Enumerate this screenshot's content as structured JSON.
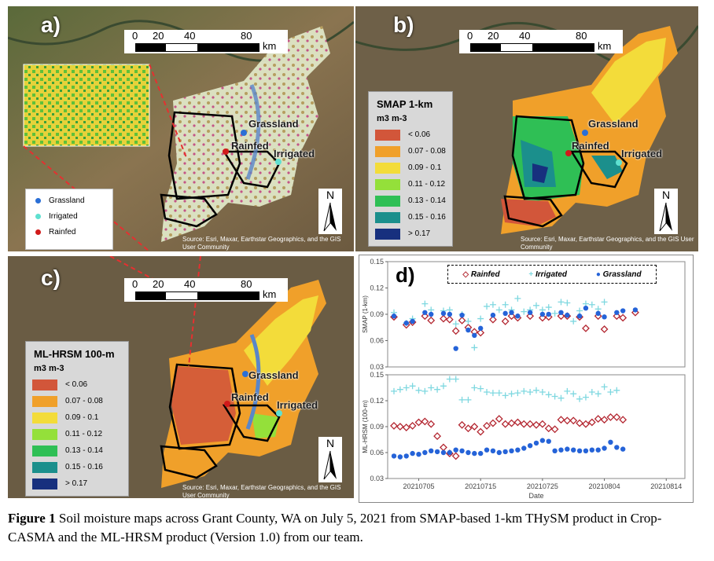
{
  "panels": {
    "a": {
      "tag": "a)"
    },
    "b": {
      "tag": "b)"
    },
    "c": {
      "tag": "c)"
    },
    "d": {
      "tag": "d)"
    }
  },
  "scalebar": {
    "ticks": [
      "0",
      "20",
      "40",
      "80"
    ],
    "unit": "km"
  },
  "north_label": "N",
  "source_text": "Source: Esri, Maxar, Earthstar Geographics, and the GIS User Community",
  "sites": {
    "grassland": "Grassland",
    "rainfed": "Rainfed",
    "irrigated": "Irrigated"
  },
  "point_legend": [
    {
      "label": "Grassland",
      "color": "#2a6fd6"
    },
    {
      "label": "Irrigated",
      "color": "#5fe0d0"
    },
    {
      "label": "Rainfed",
      "color": "#d11a1a"
    }
  ],
  "smap_legend": {
    "title": "SMAP 1-km",
    "unit": "m3 m-3",
    "classes": [
      {
        "label": "< 0.06",
        "color": "#d2563a"
      },
      {
        "label": "0.07 - 0.08",
        "color": "#f0a02a"
      },
      {
        "label": "0.09 - 0.1",
        "color": "#f3dc3a"
      },
      {
        "label": "0.11 - 0.12",
        "color": "#94e03a"
      },
      {
        "label": "0.13 - 0.14",
        "color": "#2fbf55"
      },
      {
        "label": "0.15 - 0.16",
        "color": "#1b8f8c"
      },
      {
        "label": "> 0.17",
        "color": "#17307e"
      }
    ]
  },
  "mlhrsm_legend": {
    "title": "ML-HRSM 100-m",
    "unit": "m3 m-3",
    "classes": [
      {
        "label": "< 0.06",
        "color": "#d2563a"
      },
      {
        "label": "0.07 - 0.08",
        "color": "#f0a02a"
      },
      {
        "label": "0.09 - 0.1",
        "color": "#f3dc3a"
      },
      {
        "label": "0.11 - 0.12",
        "color": "#94e03a"
      },
      {
        "label": "0.13 - 0.14",
        "color": "#2fbf55"
      },
      {
        "label": "0.15 - 0.16",
        "color": "#1b8f8c"
      },
      {
        "label": "> 0.17",
        "color": "#17307e"
      }
    ]
  },
  "chart_data": {
    "type": "scatter",
    "xlabel": "Date",
    "x_tick_labels": [
      "20210705",
      "20210715",
      "20210725",
      "20210804",
      "20210814"
    ],
    "x_dates": [
      "07-01",
      "07-02",
      "07-03",
      "07-04",
      "07-05",
      "07-06",
      "07-07",
      "07-08",
      "07-09",
      "07-10",
      "07-11",
      "07-12",
      "07-13",
      "07-14",
      "07-15",
      "07-16",
      "07-17",
      "07-18",
      "07-19",
      "07-20",
      "07-21",
      "07-22",
      "07-23",
      "07-24",
      "07-25",
      "07-26",
      "07-27",
      "07-28",
      "07-29",
      "07-30",
      "07-31",
      "08-01",
      "08-02",
      "08-03",
      "08-04",
      "08-05",
      "08-06",
      "08-07",
      "08-08",
      "08-09",
      "08-10",
      "08-11",
      "08-12",
      "08-13",
      "08-14",
      "08-15",
      "08-16"
    ],
    "legend": [
      {
        "name": "Rainfed",
        "marker": "diamond",
        "color": "#b32630"
      },
      {
        "name": "Irrigated",
        "marker": "plus",
        "color": "#7fd8e0"
      },
      {
        "name": "Grassland",
        "marker": "circle",
        "color": "#2563d8"
      }
    ],
    "subplots": [
      {
        "ylabel": "SMAP (1-km)",
        "ylim": [
          0.03,
          0.15
        ],
        "yticks": [
          "0.15",
          "0.12",
          "0.09",
          "0.06",
          "0.03"
        ],
        "series": [
          {
            "name": "Rainfed",
            "points": [
              [
                0,
                0.087
              ],
              [
                2,
                0.078
              ],
              [
                3,
                0.081
              ],
              [
                5,
                0.088
              ],
              [
                6,
                0.083
              ],
              [
                8,
                0.085
              ],
              [
                9,
                0.084
              ],
              [
                10,
                0.071
              ],
              [
                11,
                0.083
              ],
              [
                12,
                0.075
              ],
              [
                13,
                0.07
              ],
              [
                14,
                0.069
              ],
              [
                16,
                0.084
              ],
              [
                18,
                0.082
              ],
              [
                19,
                0.088
              ],
              [
                20,
                0.086
              ],
              [
                22,
                0.088
              ],
              [
                24,
                0.086
              ],
              [
                25,
                0.087
              ],
              [
                27,
                0.088
              ],
              [
                28,
                0.088
              ],
              [
                30,
                0.087
              ],
              [
                31,
                0.074
              ],
              [
                33,
                0.088
              ],
              [
                34,
                0.073
              ],
              [
                36,
                0.088
              ],
              [
                37,
                0.086
              ],
              [
                39,
                0.092
              ]
            ]
          },
          {
            "name": "Irrigated",
            "points": [
              [
                0,
                0.092
              ],
              [
                2,
                0.08
              ],
              [
                3,
                0.085
              ],
              [
                5,
                0.102
              ],
              [
                6,
                0.095
              ],
              [
                8,
                0.094
              ],
              [
                9,
                0.095
              ],
              [
                10,
                0.079
              ],
              [
                11,
                0.09
              ],
              [
                12,
                0.082
              ],
              [
                13,
                0.052
              ],
              [
                14,
                0.085
              ],
              [
                15,
                0.099
              ],
              [
                16,
                0.101
              ],
              [
                17,
                0.095
              ],
              [
                18,
                0.101
              ],
              [
                19,
                0.095
              ],
              [
                20,
                0.108
              ],
              [
                21,
                0.093
              ],
              [
                22,
                0.095
              ],
              [
                23,
                0.1
              ],
              [
                24,
                0.095
              ],
              [
                25,
                0.098
              ],
              [
                26,
                0.091
              ],
              [
                27,
                0.104
              ],
              [
                28,
                0.103
              ],
              [
                29,
                0.082
              ],
              [
                30,
                0.094
              ],
              [
                31,
                0.102
              ],
              [
                32,
                0.101
              ],
              [
                33,
                0.096
              ],
              [
                34,
                0.104
              ]
            ]
          },
          {
            "name": "Grassland",
            "points": [
              [
                0,
                0.088
              ],
              [
                2,
                0.08
              ],
              [
                3,
                0.082
              ],
              [
                5,
                0.092
              ],
              [
                6,
                0.09
              ],
              [
                8,
                0.091
              ],
              [
                9,
                0.09
              ],
              [
                10,
                0.051
              ],
              [
                11,
                0.089
              ],
              [
                12,
                0.072
              ],
              [
                13,
                0.066
              ],
              [
                14,
                0.074
              ],
              [
                16,
                0.089
              ],
              [
                18,
                0.091
              ],
              [
                19,
                0.092
              ],
              [
                20,
                0.088
              ],
              [
                22,
                0.092
              ],
              [
                24,
                0.09
              ],
              [
                25,
                0.09
              ],
              [
                27,
                0.092
              ],
              [
                28,
                0.089
              ],
              [
                30,
                0.088
              ],
              [
                31,
                0.097
              ],
              [
                33,
                0.091
              ],
              [
                34,
                0.087
              ],
              [
                36,
                0.092
              ],
              [
                37,
                0.094
              ],
              [
                39,
                0.095
              ]
            ]
          }
        ]
      },
      {
        "ylabel": "ML-HRSM (100-m)",
        "ylim": [
          0.03,
          0.15
        ],
        "yticks": [
          "0.15",
          "0.12",
          "0.09",
          "0.06",
          "0.03"
        ],
        "series": [
          {
            "name": "Rainfed",
            "points": [
              [
                0,
                0.091
              ],
              [
                1,
                0.09
              ],
              [
                2,
                0.089
              ],
              [
                3,
                0.091
              ],
              [
                4,
                0.095
              ],
              [
                5,
                0.096
              ],
              [
                6,
                0.093
              ],
              [
                7,
                0.079
              ],
              [
                8,
                0.066
              ],
              [
                9,
                0.059
              ],
              [
                10,
                0.056
              ],
              [
                11,
                0.092
              ],
              [
                12,
                0.088
              ],
              [
                13,
                0.09
              ],
              [
                14,
                0.084
              ],
              [
                15,
                0.091
              ],
              [
                16,
                0.094
              ],
              [
                17,
                0.099
              ],
              [
                18,
                0.093
              ],
              [
                19,
                0.094
              ],
              [
                20,
                0.095
              ],
              [
                21,
                0.093
              ],
              [
                22,
                0.093
              ],
              [
                23,
                0.092
              ],
              [
                24,
                0.093
              ],
              [
                25,
                0.088
              ],
              [
                26,
                0.087
              ],
              [
                27,
                0.098
              ],
              [
                28,
                0.097
              ],
              [
                29,
                0.097
              ],
              [
                30,
                0.094
              ],
              [
                31,
                0.093
              ],
              [
                32,
                0.095
              ],
              [
                33,
                0.099
              ],
              [
                34,
                0.098
              ],
              [
                35,
                0.101
              ],
              [
                36,
                0.101
              ],
              [
                37,
                0.098
              ]
            ]
          },
          {
            "name": "Irrigated",
            "points": [
              [
                0,
                0.131
              ],
              [
                1,
                0.133
              ],
              [
                2,
                0.135
              ],
              [
                3,
                0.137
              ],
              [
                4,
                0.132
              ],
              [
                5,
                0.131
              ],
              [
                6,
                0.135
              ],
              [
                7,
                0.133
              ],
              [
                8,
                0.137
              ],
              [
                9,
                0.145
              ],
              [
                10,
                0.145
              ],
              [
                11,
                0.121
              ],
              [
                12,
                0.121
              ],
              [
                13,
                0.135
              ],
              [
                14,
                0.134
              ],
              [
                15,
                0.13
              ],
              [
                16,
                0.129
              ],
              [
                17,
                0.129
              ],
              [
                18,
                0.126
              ],
              [
                19,
                0.128
              ],
              [
                20,
                0.129
              ],
              [
                21,
                0.131
              ],
              [
                22,
                0.13
              ],
              [
                23,
                0.132
              ],
              [
                24,
                0.13
              ],
              [
                25,
                0.127
              ],
              [
                26,
                0.125
              ],
              [
                27,
                0.123
              ],
              [
                28,
                0.131
              ],
              [
                29,
                0.128
              ],
              [
                30,
                0.122
              ],
              [
                31,
                0.124
              ],
              [
                32,
                0.13
              ],
              [
                33,
                0.128
              ],
              [
                34,
                0.136
              ],
              [
                35,
                0.13
              ],
              [
                36,
                0.132
              ]
            ]
          },
          {
            "name": "Grassland",
            "points": [
              [
                0,
                0.056
              ],
              [
                1,
                0.055
              ],
              [
                2,
                0.056
              ],
              [
                3,
                0.059
              ],
              [
                4,
                0.058
              ],
              [
                5,
                0.06
              ],
              [
                6,
                0.062
              ],
              [
                7,
                0.061
              ],
              [
                8,
                0.06
              ],
              [
                9,
                0.06
              ],
              [
                10,
                0.063
              ],
              [
                11,
                0.062
              ],
              [
                12,
                0.06
              ],
              [
                13,
                0.059
              ],
              [
                14,
                0.059
              ],
              [
                15,
                0.063
              ],
              [
                16,
                0.062
              ],
              [
                17,
                0.06
              ],
              [
                18,
                0.061
              ],
              [
                19,
                0.062
              ],
              [
                20,
                0.063
              ],
              [
                21,
                0.065
              ],
              [
                22,
                0.068
              ],
              [
                23,
                0.071
              ],
              [
                24,
                0.074
              ],
              [
                25,
                0.073
              ],
              [
                26,
                0.062
              ],
              [
                27,
                0.063
              ],
              [
                28,
                0.064
              ],
              [
                29,
                0.063
              ],
              [
                30,
                0.062
              ],
              [
                31,
                0.062
              ],
              [
                32,
                0.063
              ],
              [
                33,
                0.063
              ],
              [
                34,
                0.065
              ],
              [
                35,
                0.072
              ],
              [
                36,
                0.066
              ],
              [
                37,
                0.064
              ]
            ]
          }
        ]
      }
    ]
  },
  "caption": {
    "bold": "Figure 1",
    "text": " Soil moisture maps across Grant County, WA on July 5, 2021 from SMAP-based 1-km THySM product in Crop-CASMA and the ML-HRSM product (Version 1.0) from our team."
  }
}
